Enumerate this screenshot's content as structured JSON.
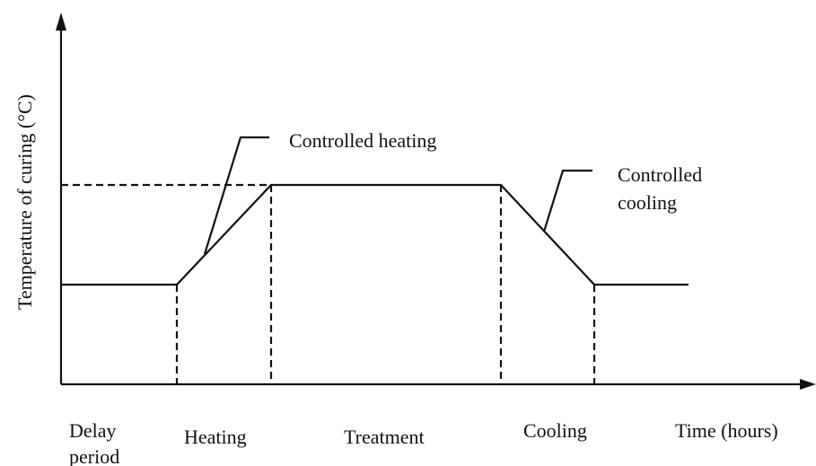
{
  "axes": {
    "y_label": "Temperature of curing (°C)",
    "x_label": "Time (hours)"
  },
  "phases": [
    {
      "lines": [
        "Delay",
        "period"
      ]
    },
    {
      "lines": [
        "Heating"
      ]
    },
    {
      "lines": [
        "Treatment"
      ]
    },
    {
      "lines": [
        "Cooling"
      ]
    }
  ],
  "annotations": [
    {
      "lines": [
        "Controlled heating"
      ]
    },
    {
      "lines": [
        "Controlled",
        "cooling"
      ]
    }
  ]
}
